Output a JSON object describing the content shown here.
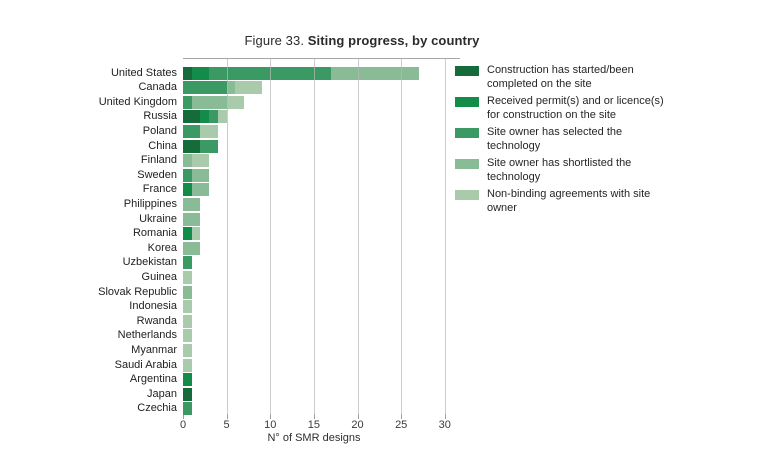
{
  "title": {
    "prefix": "Figure 33. ",
    "text": "Siting progress, by country"
  },
  "chart_data": {
    "type": "bar",
    "orientation": "horizontal-stacked",
    "title": "Figure 33. Siting progress, by country",
    "xlabel": "N° of SMR designs",
    "xlim": [
      0,
      31.5
    ],
    "xticks": [
      0,
      5,
      10,
      15,
      20,
      25,
      30
    ],
    "grid": "vertical",
    "legend_position": "right",
    "categories": [
      "United States",
      "Canada",
      "United Kingdom",
      "Russia",
      "Poland",
      "China",
      "Finland",
      "Sweden",
      "France",
      "Philippines",
      "Ukraine",
      "Romania",
      "Korea",
      "Uzbekistan",
      "Guinea",
      "Slovak Republic",
      "Indonesia",
      "Rwanda",
      "Netherlands",
      "Myanmar",
      "Saudi Arabia",
      "Argentina",
      "Japan",
      "Czechia"
    ],
    "series": [
      {
        "name": "Construction has started/been completed on the site",
        "color": "#156b3a",
        "values": [
          1,
          0,
          0,
          2,
          0,
          2,
          0,
          0,
          0,
          0,
          0,
          0,
          0,
          0,
          0,
          0,
          0,
          0,
          0,
          0,
          0,
          0,
          1,
          0
        ]
      },
      {
        "name": "Received permit(s) and or licence(s) for construction on the site",
        "color": "#138c4a",
        "values": [
          2,
          0,
          0,
          1,
          0,
          0,
          0,
          0,
          1,
          0,
          0,
          1,
          0,
          0,
          0,
          0,
          0,
          0,
          0,
          0,
          0,
          1,
          0,
          0
        ]
      },
      {
        "name": "Site owner has selected the technology",
        "color": "#3b9a64",
        "values": [
          14,
          5,
          1,
          1,
          2,
          2,
          0,
          1,
          0,
          0,
          0,
          0,
          0,
          1,
          0,
          0,
          0,
          0,
          0,
          0,
          0,
          0,
          0,
          1
        ]
      },
      {
        "name": "Site owner has shortlisted the technology",
        "color": "#8abb97",
        "values": [
          10,
          1,
          4,
          0,
          0,
          0,
          1,
          2,
          2,
          2,
          2,
          0,
          2,
          0,
          0,
          1,
          0,
          0,
          0,
          0,
          0,
          0,
          0,
          0
        ]
      },
      {
        "name": "Non-binding agreements with site owner",
        "color": "#a9cbac",
        "values": [
          0,
          3,
          2,
          1,
          2,
          0,
          2,
          0,
          0,
          0,
          0,
          1,
          0,
          0,
          1,
          0,
          1,
          1,
          1,
          1,
          1,
          0,
          0,
          0
        ]
      }
    ],
    "legend": [
      {
        "label": "Construction has started/been\ncompleted on the site",
        "color": "#156b3a"
      },
      {
        "label": "Received permit(s) and or licence(s)\nfor construction on the site",
        "color": "#138c4a"
      },
      {
        "label": "Site owner has selected the\ntechnology",
        "color": "#3b9a64"
      },
      {
        "label": "Site owner has shortlisted the\ntechnology",
        "color": "#8abb97"
      },
      {
        "label": "Non-binding agreements with site\nowner",
        "color": "#a9cbac"
      }
    ]
  }
}
